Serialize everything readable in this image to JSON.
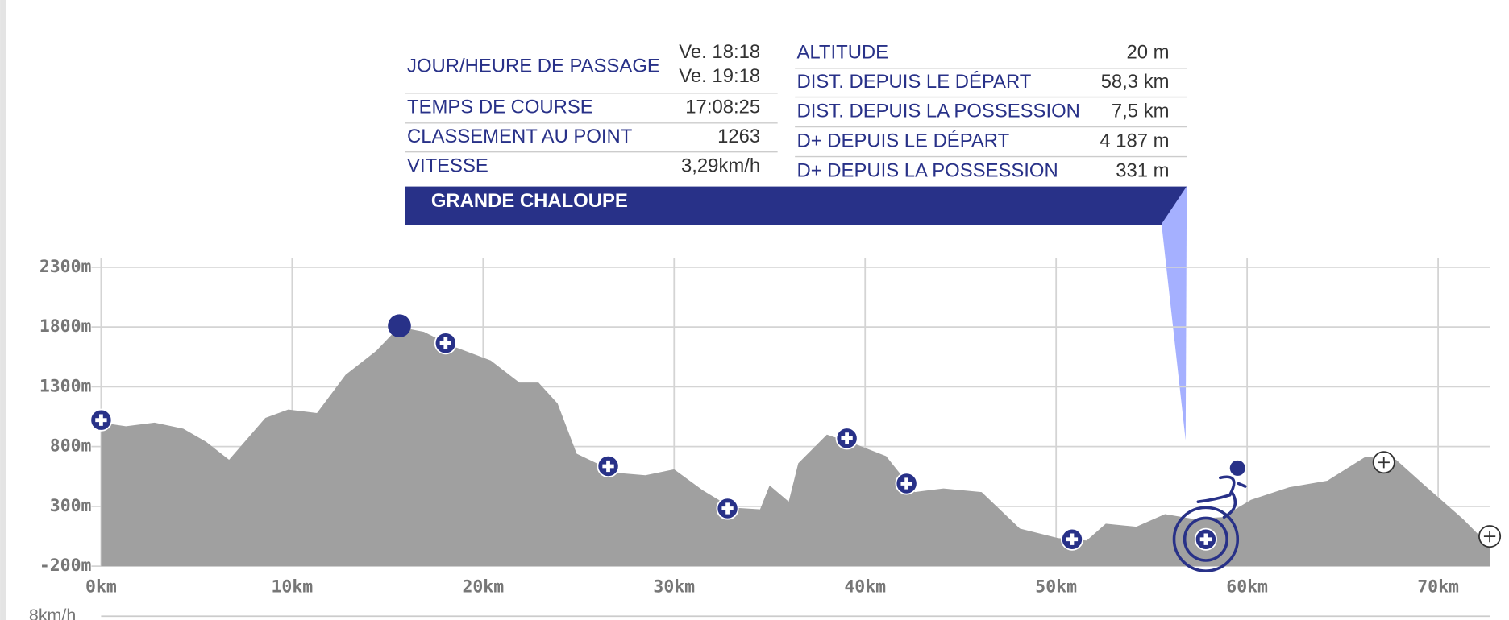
{
  "info": {
    "left_rows": [
      {
        "label": "JOUR/HEURE DE PASSAGE",
        "values": [
          "Ve. 18:18",
          "Ve. 19:18"
        ]
      },
      {
        "label": "TEMPS DE COURSE",
        "values": [
          "17:08:25"
        ]
      },
      {
        "label": "CLASSEMENT AU POINT",
        "values": [
          "1263"
        ]
      },
      {
        "label": "VITESSE",
        "values": [
          "3,29km/h"
        ]
      }
    ],
    "right_rows": [
      {
        "label": "ALTITUDE",
        "values": [
          "20 m"
        ]
      },
      {
        "label": "DIST. DEPUIS LE DÉPART",
        "values": [
          "58,3 km"
        ]
      },
      {
        "label": "DIST. DEPUIS LA POSSESSION",
        "values": [
          "7,5 km"
        ]
      },
      {
        "label": "D+ DEPUIS LE DÉPART",
        "values": [
          "4 187 m"
        ]
      },
      {
        "label": "D+ DEPUIS LA POSSESSION",
        "values": [
          "331 m"
        ]
      }
    ],
    "point_name": "GRANDE CHALOUPE"
  },
  "chart_data": {
    "type": "area",
    "color": "#a0a0a0",
    "x": [
      0,
      1.3,
      2.8,
      4.3,
      5.5,
      6.7,
      8.6,
      9.8,
      11.3,
      12.8,
      14.4,
      15.6,
      16.9,
      18.4,
      20.4,
      21.9,
      22.9,
      23.9,
      24.9,
      27.0,
      28.5,
      30.0,
      31.5,
      33.0,
      34.5,
      35.0,
      36.0,
      36.5,
      38.0,
      39.5,
      41.1,
      42.6,
      44.1,
      46.1,
      48.1,
      50.1,
      51.6,
      52.6,
      54.2,
      55.7,
      57.2,
      58.7,
      60.2,
      62.2,
      64.2,
      66.2,
      67.8,
      69.3,
      71.3,
      72.7
    ],
    "values": [
      1000,
      970,
      1000,
      950,
      840,
      690,
      1040,
      1110,
      1080,
      1400,
      1600,
      1800,
      1760,
      1640,
      1520,
      1335,
      1335,
      1160,
      740,
      580,
      560,
      610,
      435,
      290,
      275,
      475,
      340,
      660,
      900,
      820,
      720,
      420,
      450,
      420,
      115,
      35,
      15,
      155,
      130,
      235,
      195,
      210,
      355,
      460,
      515,
      715,
      690,
      475,
      195,
      -30
    ],
    "xlim": [
      0,
      72.7
    ],
    "ylim": [
      -200,
      2300
    ],
    "xticks": [
      {
        "value": 0,
        "label": "0km"
      },
      {
        "value": 10,
        "label": "10km"
      },
      {
        "value": 20,
        "label": "20km"
      },
      {
        "value": 30,
        "label": "30km"
      },
      {
        "value": 40,
        "label": "40km"
      },
      {
        "value": 50,
        "label": "50km"
      },
      {
        "value": 60,
        "label": "60km"
      },
      {
        "value": 70,
        "label": "70km"
      }
    ],
    "yticks": [
      {
        "value": -200,
        "label": "-200m"
      },
      {
        "value": 300,
        "label": "300m"
      },
      {
        "value": 800,
        "label": "800m"
      },
      {
        "value": 1300,
        "label": "1300m"
      },
      {
        "value": 1800,
        "label": "1800m"
      },
      {
        "value": 2300,
        "label": "2300m"
      }
    ],
    "grid": true,
    "speed_axis_label": "8km/h"
  }
}
